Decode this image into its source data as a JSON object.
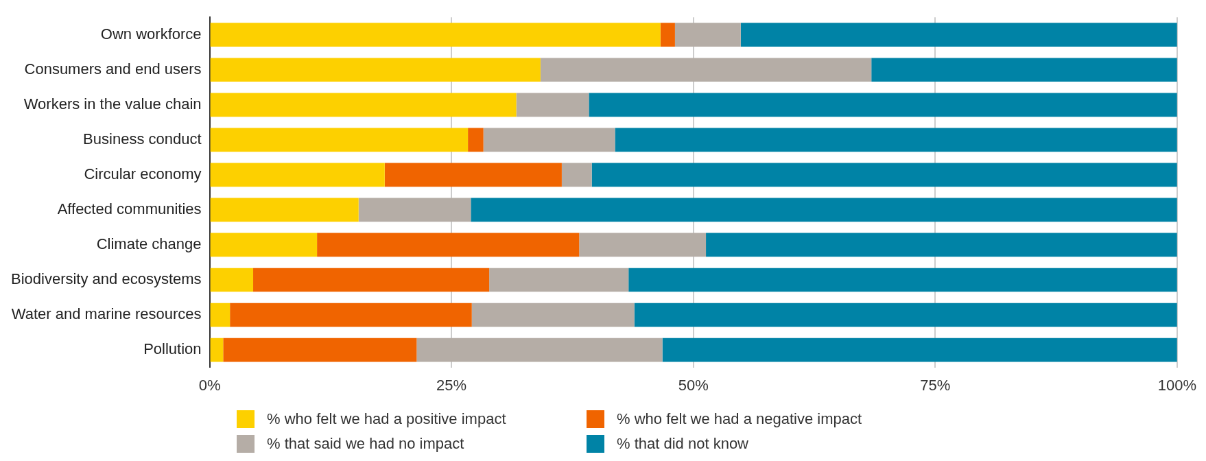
{
  "chart_data": {
    "type": "bar",
    "orientation": "horizontal",
    "stacked": true,
    "categories": [
      "Own workforce",
      "Consumers and end users",
      "Workers in the value chain",
      "Business conduct",
      "Circular economy",
      "Affected communities",
      "Climate change",
      "Biodiversity and ecosystems",
      "Water and marine resources",
      "Pollution"
    ],
    "series": [
      {
        "name": "% who felt we had a positive impact",
        "color": "#fdd000",
        "values": [
          46.6,
          34.2,
          31.7,
          26.7,
          18.1,
          15.4,
          11.1,
          4.5,
          2.1,
          1.4
        ]
      },
      {
        "name": "% who felt we had a negative impact",
        "color": "#f06400",
        "values": [
          1.5,
          0,
          0,
          1.6,
          18.3,
          0,
          27.1,
          24.4,
          25.0,
          20.0
        ]
      },
      {
        "name": "% that said we had no impact",
        "color": "#b5ada6",
        "values": [
          6.8,
          34.2,
          7.5,
          13.6,
          3.1,
          11.6,
          13.1,
          14.4,
          16.8,
          25.4
        ]
      },
      {
        "name": "% that did not know",
        "color": "#0083a6",
        "values": [
          45.1,
          31.6,
          60.8,
          58.1,
          60.5,
          73.0,
          48.7,
          56.7,
          56.1,
          53.2
        ]
      }
    ],
    "xlim": [
      0,
      100
    ],
    "xticks": [
      {
        "value": 0,
        "label": "0%"
      },
      {
        "value": 25,
        "label": "25%"
      },
      {
        "value": 50,
        "label": "50%"
      },
      {
        "value": 75,
        "label": "75%"
      },
      {
        "value": 100,
        "label": "100%"
      }
    ],
    "grid": "x",
    "legend": "bottom"
  }
}
